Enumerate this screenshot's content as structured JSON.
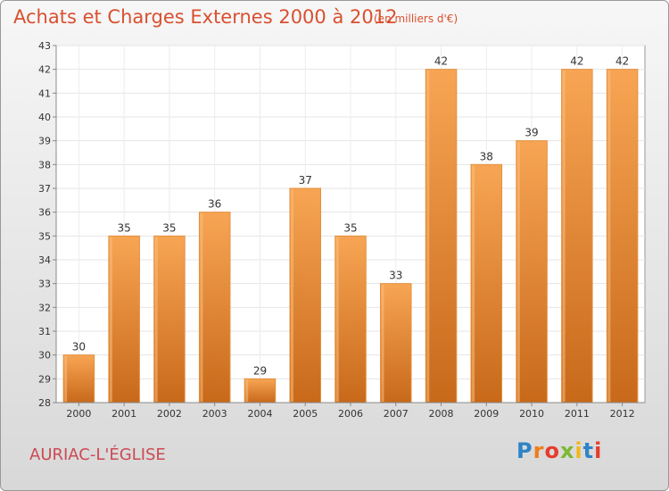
{
  "chart_data": {
    "type": "bar",
    "title": "Achats et Charges Externes 2000 à 2012",
    "subtitle": "(en milliers d'€)",
    "categories": [
      "2000",
      "2001",
      "2002",
      "2003",
      "2004",
      "2005",
      "2006",
      "2007",
      "2008",
      "2009",
      "2010",
      "2011",
      "2012"
    ],
    "values": [
      30,
      35,
      35,
      36,
      29,
      37,
      35,
      33,
      42,
      38,
      39,
      42,
      42
    ],
    "ylim": [
      28,
      43
    ],
    "yticks": [
      28,
      29,
      30,
      31,
      32,
      33,
      34,
      35,
      36,
      37,
      38,
      39,
      40,
      41,
      42,
      43
    ],
    "grid": true,
    "xlabel": "",
    "ylabel": ""
  },
  "commune": "AURIAC-L'ÉGLISE",
  "brand": {
    "letters": [
      "P",
      "r",
      "o",
      "x",
      "i",
      "t",
      "i"
    ],
    "colors": [
      "#2e84c6",
      "#f07d1a",
      "#e63c2c",
      "#7cb832",
      "#f2b81c",
      "#2e84c6",
      "#e63c2c"
    ]
  },
  "colors": {
    "bar": "#f0953e",
    "bar_light": "#f8ad5c",
    "bar_dark": "#c96e1d",
    "title": "#d9502f"
  }
}
